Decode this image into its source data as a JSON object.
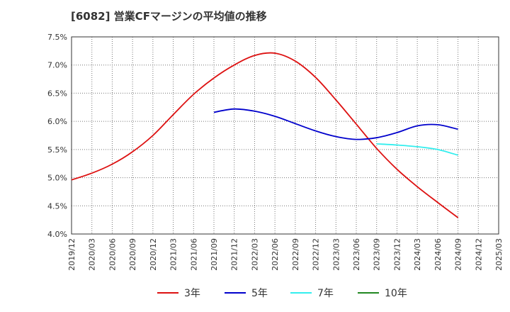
{
  "chart_data": {
    "type": "line",
    "title": "[6082]  営業CFマージンの平均値の推移",
    "xlabel": "",
    "ylabel": "",
    "ylim": [
      4.0,
      7.5
    ],
    "y_ticks": [
      "4.0%",
      "4.5%",
      "5.0%",
      "5.5%",
      "6.0%",
      "6.5%",
      "7.0%",
      "7.5%"
    ],
    "x_ticks": [
      "2019/12",
      "2020/03",
      "2020/06",
      "2020/09",
      "2020/12",
      "2021/03",
      "2021/06",
      "2021/09",
      "2021/12",
      "2022/03",
      "2022/06",
      "2022/09",
      "2022/12",
      "2023/03",
      "2023/06",
      "2023/09",
      "2023/12",
      "2024/03",
      "2024/06",
      "2024/09",
      "2024/12",
      "2025/03"
    ],
    "grid": true,
    "legend_position": "bottom",
    "series": [
      {
        "name": "3年",
        "color": "#dd1111",
        "values": [
          4.96,
          5.08,
          5.24,
          5.46,
          5.75,
          6.12,
          6.48,
          6.77,
          7.0,
          7.17,
          7.21,
          7.07,
          6.78,
          6.38,
          5.95,
          5.52,
          5.15,
          4.84,
          4.56,
          4.29,
          null,
          null
        ]
      },
      {
        "name": "5年",
        "color": "#0000cc",
        "values": [
          null,
          null,
          null,
          null,
          null,
          null,
          null,
          6.16,
          6.22,
          6.18,
          6.09,
          5.96,
          5.83,
          5.73,
          5.68,
          5.71,
          5.8,
          5.92,
          5.94,
          5.86,
          null,
          null
        ]
      },
      {
        "name": "7年",
        "color": "#33eeee",
        "values": [
          null,
          null,
          null,
          null,
          null,
          null,
          null,
          null,
          null,
          null,
          null,
          null,
          null,
          null,
          null,
          5.6,
          5.58,
          5.55,
          5.5,
          5.4,
          null,
          null
        ]
      },
      {
        "name": "10年",
        "color": "#228822",
        "values": [
          null,
          null,
          null,
          null,
          null,
          null,
          null,
          null,
          null,
          null,
          null,
          null,
          null,
          null,
          null,
          null,
          null,
          null,
          null,
          null,
          null,
          null
        ]
      }
    ]
  }
}
